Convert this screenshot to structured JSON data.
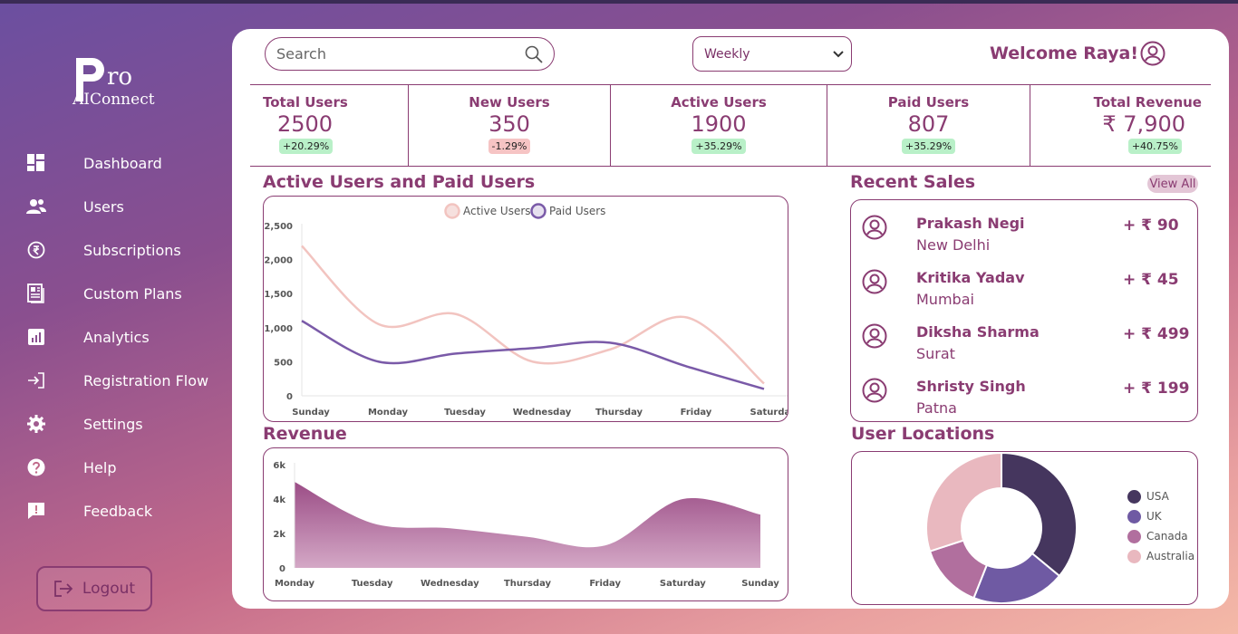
{
  "brand": {
    "mark": "P",
    "ro": "ro",
    "sub": "AIConnect"
  },
  "sidebar": {
    "items": [
      {
        "label": "Dashboard",
        "icon": "dashboard-icon"
      },
      {
        "label": "Users",
        "icon": "users-icon"
      },
      {
        "label": "Subscriptions",
        "icon": "rupee-circle-icon"
      },
      {
        "label": "Custom Plans",
        "icon": "document-icon"
      },
      {
        "label": "Analytics",
        "icon": "analytics-icon"
      },
      {
        "label": "Registration Flow",
        "icon": "sign-in-icon"
      },
      {
        "label": "Settings",
        "icon": "gear-icon"
      },
      {
        "label": "Help",
        "icon": "help-icon"
      },
      {
        "label": "Feedback",
        "icon": "feedback-icon"
      }
    ],
    "logout_label": "Logout"
  },
  "header": {
    "search_placeholder": "Search",
    "period": "Weekly",
    "welcome": "Welcome Raya!"
  },
  "stats": [
    {
      "title": "Total Users",
      "value": "2500",
      "change": "+20.29%",
      "trend": "up"
    },
    {
      "title": "New Users",
      "value": "350",
      "change": "-1.29%",
      "trend": "down"
    },
    {
      "title": "Active Users",
      "value": "1900",
      "change": "+35.29%",
      "trend": "up"
    },
    {
      "title": "Paid Users",
      "value": "807",
      "change": "+35.29%",
      "trend": "up"
    },
    {
      "title": "Total Revenue",
      "value": "₹ 7,900",
      "change": "+40.75%",
      "trend": "up"
    }
  ],
  "active_paid": {
    "title": "Active Users and Paid Users",
    "chart_data": {
      "type": "line",
      "categories": [
        "Sunday",
        "Monday",
        "Tuesday",
        "Wednesday",
        "Thursday",
        "Friday",
        "Saturday"
      ],
      "series": [
        {
          "name": "Active Users",
          "values": [
            2200,
            1050,
            1200,
            500,
            680,
            1150,
            180
          ],
          "color": "#f2c4c0"
        },
        {
          "name": "Paid Users",
          "values": [
            1100,
            500,
            620,
            700,
            780,
            430,
            100
          ],
          "color": "#7a5aa8"
        }
      ],
      "yticks": [
        "2,500",
        "2,000",
        "1,500",
        "1,000",
        "500",
        "0"
      ],
      "ylim": [
        0,
        2500
      ]
    }
  },
  "revenue": {
    "title": "Revenue",
    "chart_data": {
      "type": "area",
      "categories": [
        "Monday",
        "Tuesday",
        "Wednesday",
        "Thursday",
        "Friday",
        "Saturday",
        "Sunday"
      ],
      "series": [
        {
          "values": [
            5000,
            2600,
            2300,
            1800,
            1300,
            4000,
            3100
          ],
          "color": "#a2578d"
        }
      ],
      "yticks": [
        "6k",
        "4k",
        "2k",
        "0"
      ],
      "ylim": [
        0,
        6000
      ]
    }
  },
  "recent_sales": {
    "title": "Recent Sales",
    "view_all": "View All",
    "items": [
      {
        "name": "Prakash Negi",
        "city": "New Delhi",
        "amount": "+ ₹ 90"
      },
      {
        "name": "Kritika Yadav",
        "city": "Mumbai",
        "amount": "+ ₹ 45"
      },
      {
        "name": "Diksha Sharma",
        "city": "Surat",
        "amount": "+ ₹ 499"
      },
      {
        "name": "Shristy Singh",
        "city": "Patna",
        "amount": "+ ₹ 199"
      }
    ]
  },
  "locations": {
    "title": "User Locations",
    "chart_data": {
      "type": "pie",
      "labels": [
        "USA",
        "UK",
        "Canada",
        "Australia"
      ],
      "values": [
        36,
        20,
        14,
        30
      ],
      "colors": [
        "#45365e",
        "#6f5aa3",
        "#b16f9e",
        "#e9b8bf"
      ]
    }
  }
}
